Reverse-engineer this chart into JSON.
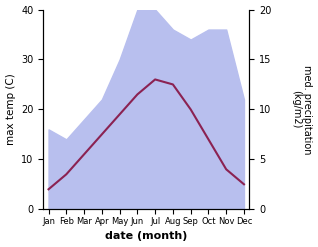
{
  "months": [
    "Jan",
    "Feb",
    "Mar",
    "Apr",
    "May",
    "Jun",
    "Jul",
    "Aug",
    "Sep",
    "Oct",
    "Nov",
    "Dec"
  ],
  "max_temp": [
    4.0,
    7.0,
    11.0,
    15.0,
    19.0,
    23.0,
    26.0,
    25.0,
    20.0,
    14.0,
    8.0,
    5.0
  ],
  "precipitation_right": [
    8.0,
    7.0,
    9.0,
    11.0,
    15.0,
    20.0,
    20.0,
    18.0,
    17.0,
    18.0,
    18.0,
    11.0
  ],
  "temp_color": "#8B2252",
  "precip_fill_color": "#b8bfee",
  "ylabel_left": "max temp (C)",
  "ylabel_right": "med. precipitation\n(kg/m2)",
  "xlabel": "date (month)",
  "ylim_left": [
    0,
    40
  ],
  "ylim_right": [
    0,
    20
  ],
  "yticks_left": [
    0,
    10,
    20,
    30,
    40
  ],
  "yticks_right": [
    0,
    5,
    10,
    15,
    20
  ],
  "linewidth": 1.5,
  "background_color": "#ffffff"
}
